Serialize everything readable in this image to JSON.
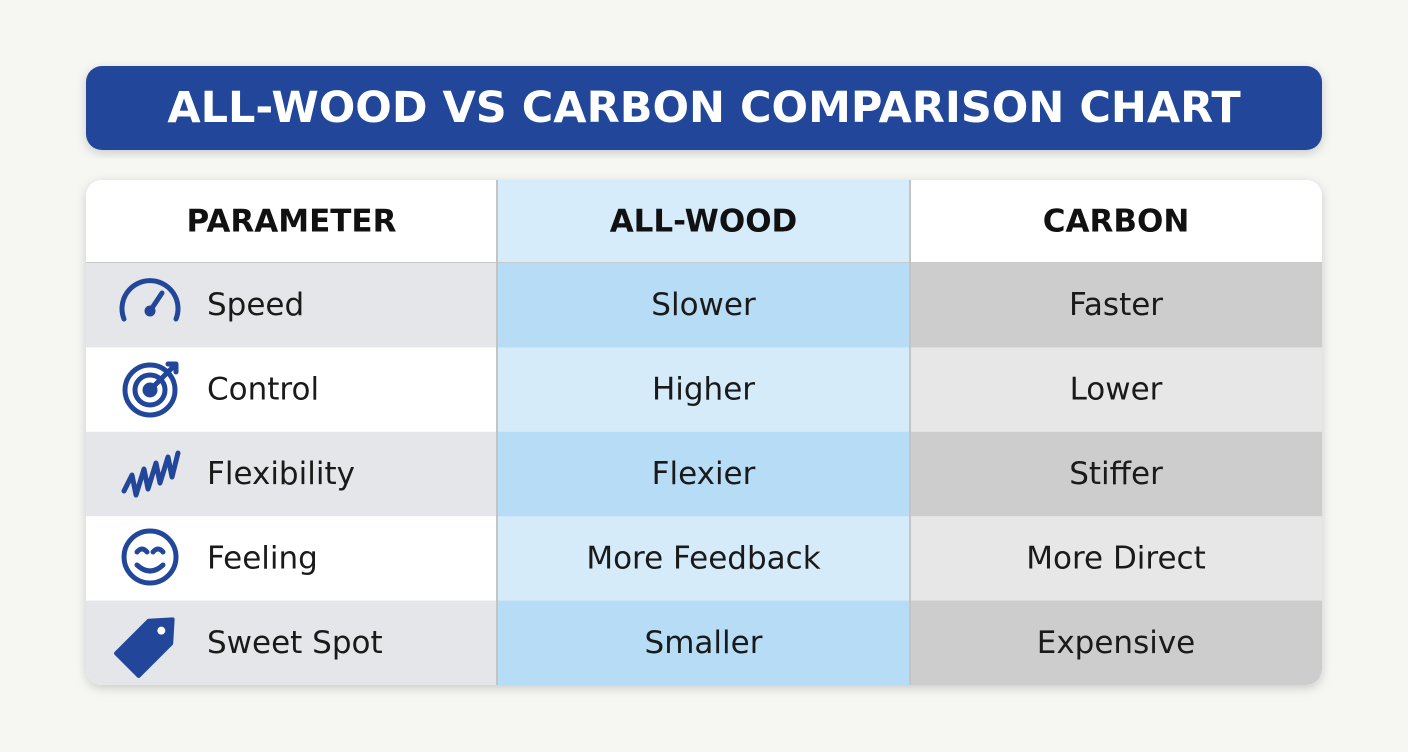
{
  "title": "ALL-WOOD VS CARBON COMPARISON CHART",
  "table": {
    "header": [
      "PARAMETER",
      "ALL-WOOD",
      "CARBON"
    ],
    "rows": [
      [
        "Speed",
        "Slower",
        "Faster"
      ],
      [
        "Control",
        "Higher",
        "Lower"
      ],
      [
        "Flexibility",
        "Flexier",
        "Stiffer"
      ],
      [
        "Feeling",
        "More Feedback",
        "More Direct"
      ],
      [
        "Sweet Spot",
        "Smaller",
        "Expensive"
      ]
    ]
  }
}
